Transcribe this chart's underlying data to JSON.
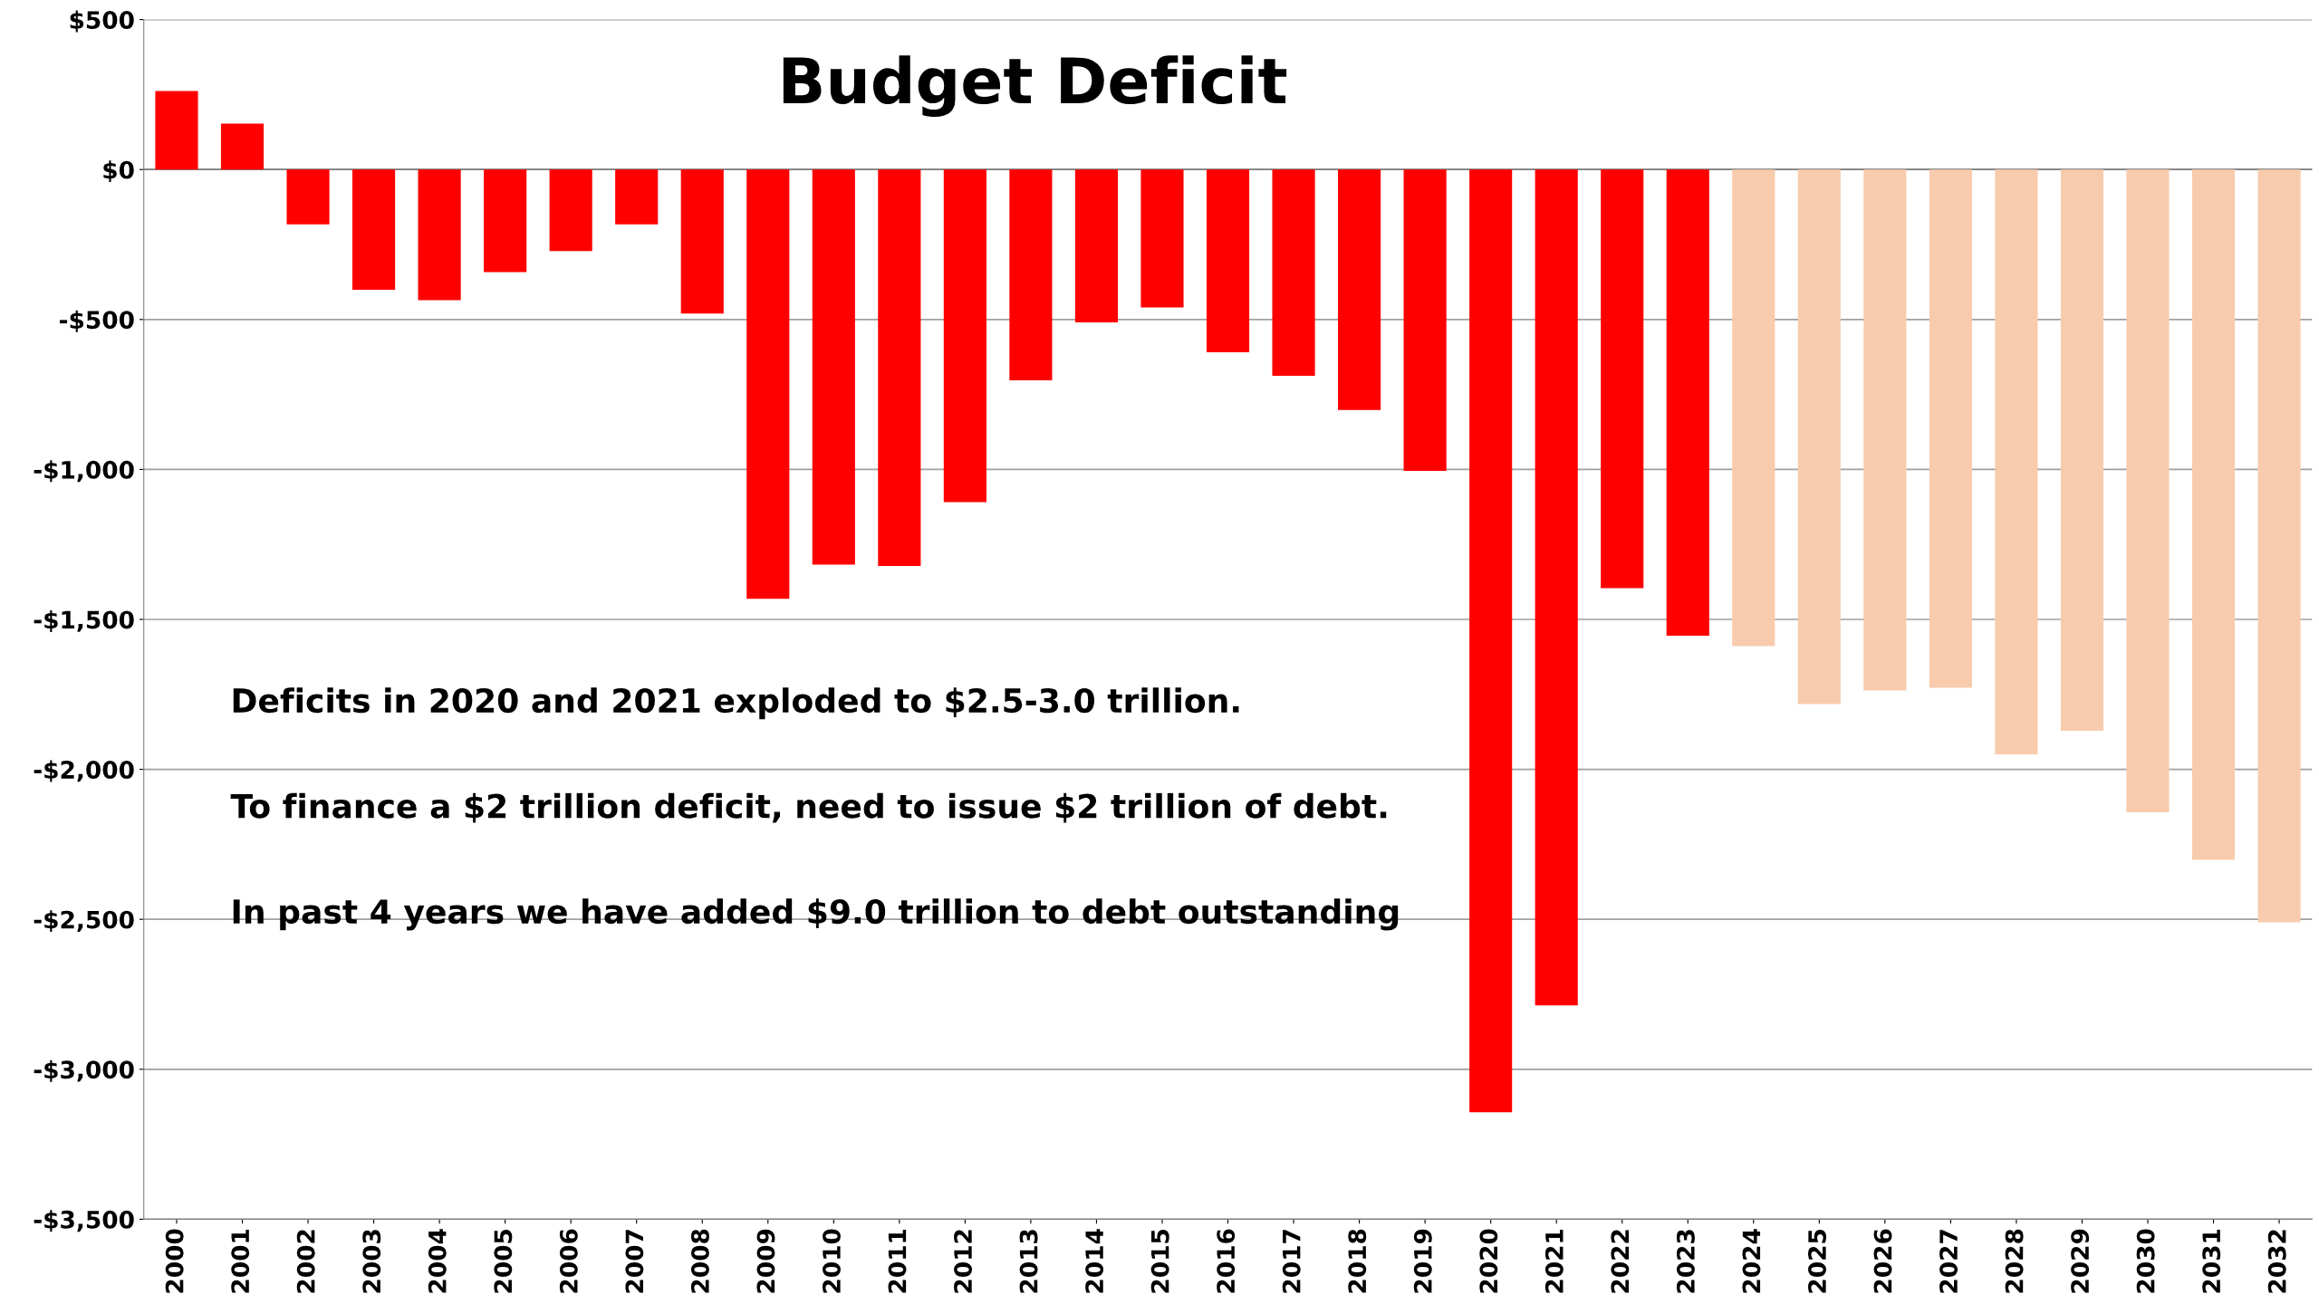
{
  "chart_data": {
    "type": "bar",
    "title": "Budget Deficit",
    "categories": [
      "2000",
      "2001",
      "2002",
      "2003",
      "2004",
      "2005",
      "2006",
      "2007",
      "2008",
      "2009",
      "2010",
      "2011",
      "2012",
      "2013",
      "2014",
      "2015",
      "2016",
      "2017",
      "2018",
      "2019",
      "2020",
      "2021",
      "2022",
      "2023",
      "2024",
      "2025",
      "2026",
      "2027",
      "2028",
      "2029",
      "2030",
      "2031",
      "2032"
    ],
    "values": [
      262,
      153,
      -183,
      -401,
      -436,
      -342,
      -272,
      -183,
      -480,
      -1431,
      -1317,
      -1322,
      -1109,
      -703,
      -510,
      -460,
      -609,
      -688,
      -802,
      -1005,
      -3143,
      -2787,
      -1396,
      -1554,
      -1589,
      -1782,
      -1737,
      -1728,
      -1950,
      -1871,
      -2143,
      -2302,
      -2510
    ],
    "colors": [
      "#ff0000",
      "#ff0000",
      "#ff0000",
      "#ff0000",
      "#ff0000",
      "#ff0000",
      "#ff0000",
      "#ff0000",
      "#ff0000",
      "#ff0000",
      "#ff0000",
      "#ff0000",
      "#ff0000",
      "#ff0000",
      "#ff0000",
      "#ff0000",
      "#ff0000",
      "#ff0000",
      "#ff0000",
      "#ff0000",
      "#ff0000",
      "#ff0000",
      "#ff0000",
      "#ff0000",
      "#f8cbad",
      "#f8cbad",
      "#f8cbad",
      "#f8cbad",
      "#f8cbad",
      "#f8cbad",
      "#f8cbad",
      "#f8cbad",
      "#f8cbad"
    ],
    "ylim": [
      -3500,
      500
    ],
    "yticks": [
      {
        "value": 500,
        "label": "$500"
      },
      {
        "value": 0,
        "label": "$0"
      },
      {
        "value": -500,
        "label": "-$500"
      },
      {
        "value": -1000,
        "label": "-$1,000"
      },
      {
        "value": -1500,
        "label": "-$1,500"
      },
      {
        "value": -2000,
        "label": "-$2,000"
      },
      {
        "value": -2500,
        "label": "-$2,500"
      },
      {
        "value": -3000,
        "label": "-$3,000"
      },
      {
        "value": -3500,
        "label": "-$3,500"
      }
    ],
    "grid": "y",
    "annotations": [
      "Deficits in 2020 and 2021 exploded to $2.5-3.0 trillion.",
      "To finance a $2 trillion deficit, need to issue $2 trillion of debt.",
      "In past 4 years we have added $9.0 trillion to debt outstanding"
    ]
  }
}
